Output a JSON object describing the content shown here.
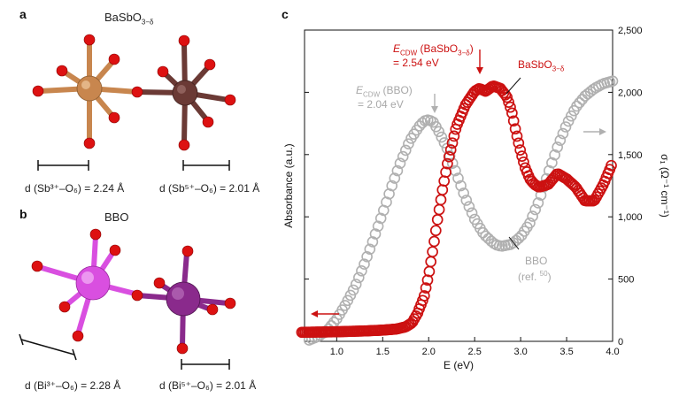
{
  "panel_a": {
    "label": "a",
    "title_main": "BaSbO",
    "title_sub": "3−δ",
    "dist_left": "d (Sb³⁺–O₆) = 2.24 Å",
    "dist_right": "d (Sb⁵⁺–O₆) = 2.01 Å",
    "colors": {
      "sb3": "#c8864e",
      "sb5": "#6b3a35",
      "oxygen": "#dd1111"
    }
  },
  "panel_b": {
    "label": "b",
    "title": "BBO",
    "dist_left": "d (Bi³⁺–O₆) = 2.28 Å",
    "dist_right": "d (Bi⁵⁺–O₆) = 2.01 Å",
    "colors": {
      "bi3": "#d94fe0",
      "bi5": "#8a2a8c",
      "oxygen": "#dd1111"
    }
  },
  "panel_c": {
    "label": "c",
    "ann_red_1": "E",
    "ann_red_1_sub": "CDW",
    "ann_red_1_rest": " (BaSbO",
    "ann_red_1_sub2": "3−δ",
    "ann_red_1_end": ")",
    "ann_red_2": "= 2.54 eV",
    "ann_grey_1": "E",
    "ann_grey_1_sub": "CDW",
    "ann_grey_1_rest": " (BBO)",
    "ann_grey_2": "= 2.04 eV",
    "series_label_red": "BaSbO",
    "series_label_red_sub": "3−δ",
    "series_label_grey_1": "BBO",
    "series_label_grey_2": "(ref. ",
    "series_label_grey_ref": "50",
    "series_label_grey_end": ")",
    "colors": {
      "red": "#cc1111",
      "grey": "#b0b0b0"
    }
  },
  "chart_data": {
    "type": "scatter",
    "xlabel": "E (eV)",
    "ylabel_left": "Absorbance (a.u.)",
    "ylabel_right": "σ₁ (Ω⁻¹ cm⁻¹)",
    "xlim": [
      0.65,
      4.0
    ],
    "x_ticks": [
      "1.0",
      "1.5",
      "2.0",
      "2.5",
      "3.0",
      "3.5",
      "4.0"
    ],
    "x_tick_values": [
      1.0,
      1.5,
      2.0,
      2.5,
      3.0,
      3.5,
      4.0
    ],
    "ylim_right": [
      0,
      2500
    ],
    "y_right_ticks": [
      "0",
      "500",
      "1,000",
      "1,500",
      "2,000",
      "2,500"
    ],
    "y_right_tick_values": [
      0,
      500,
      1000,
      1500,
      2000,
      2500
    ],
    "series": [
      {
        "name": "BaSbO3−δ",
        "axis": "left",
        "units": "a.u. (0–1)",
        "x": [
          0.62,
          1.0,
          1.3,
          1.5,
          1.65,
          1.75,
          1.82,
          1.88,
          1.95,
          2.0,
          2.05,
          2.1,
          2.15,
          2.2,
          2.25,
          2.3,
          2.4,
          2.5,
          2.55,
          2.62,
          2.7,
          2.78,
          2.85,
          2.9,
          2.95,
          3.0,
          3.05,
          3.1,
          3.15,
          3.2,
          3.3,
          3.4,
          3.5,
          3.6,
          3.7,
          3.8,
          3.9,
          3.95,
          4.0
        ],
        "y": [
          0.02,
          0.022,
          0.025,
          0.028,
          0.032,
          0.04,
          0.055,
          0.09,
          0.15,
          0.23,
          0.33,
          0.44,
          0.54,
          0.63,
          0.7,
          0.77,
          0.85,
          0.9,
          0.91,
          0.9,
          0.92,
          0.91,
          0.88,
          0.83,
          0.75,
          0.68,
          0.62,
          0.58,
          0.56,
          0.55,
          0.56,
          0.6,
          0.58,
          0.55,
          0.5,
          0.5,
          0.56,
          0.6,
          0.64
        ]
      },
      {
        "name": "BBO",
        "axis": "right",
        "units": "Ω⁻¹ cm⁻¹",
        "x": [
          0.7,
          0.8,
          0.9,
          1.0,
          1.1,
          1.2,
          1.3,
          1.4,
          1.5,
          1.6,
          1.7,
          1.8,
          1.9,
          1.95,
          2.0,
          2.05,
          2.1,
          2.2,
          2.3,
          2.4,
          2.5,
          2.6,
          2.7,
          2.75,
          2.8,
          2.9,
          3.0,
          3.1,
          3.2,
          3.3,
          3.4,
          3.5,
          3.6,
          3.7,
          3.8,
          3.9,
          4.0
        ],
        "y": [
          10,
          40,
          90,
          180,
          300,
          440,
          620,
          820,
          1030,
          1250,
          1450,
          1620,
          1730,
          1770,
          1780,
          1760,
          1700,
          1550,
          1350,
          1150,
          980,
          860,
          790,
          770,
          765,
          780,
          840,
          950,
          1130,
          1350,
          1560,
          1740,
          1880,
          1970,
          2030,
          2070,
          2090
        ]
      }
    ],
    "markers": [
      {
        "series": "BaSbO3−δ",
        "x": 2.54
      },
      {
        "series": "BBO",
        "x": 2.04
      }
    ]
  }
}
